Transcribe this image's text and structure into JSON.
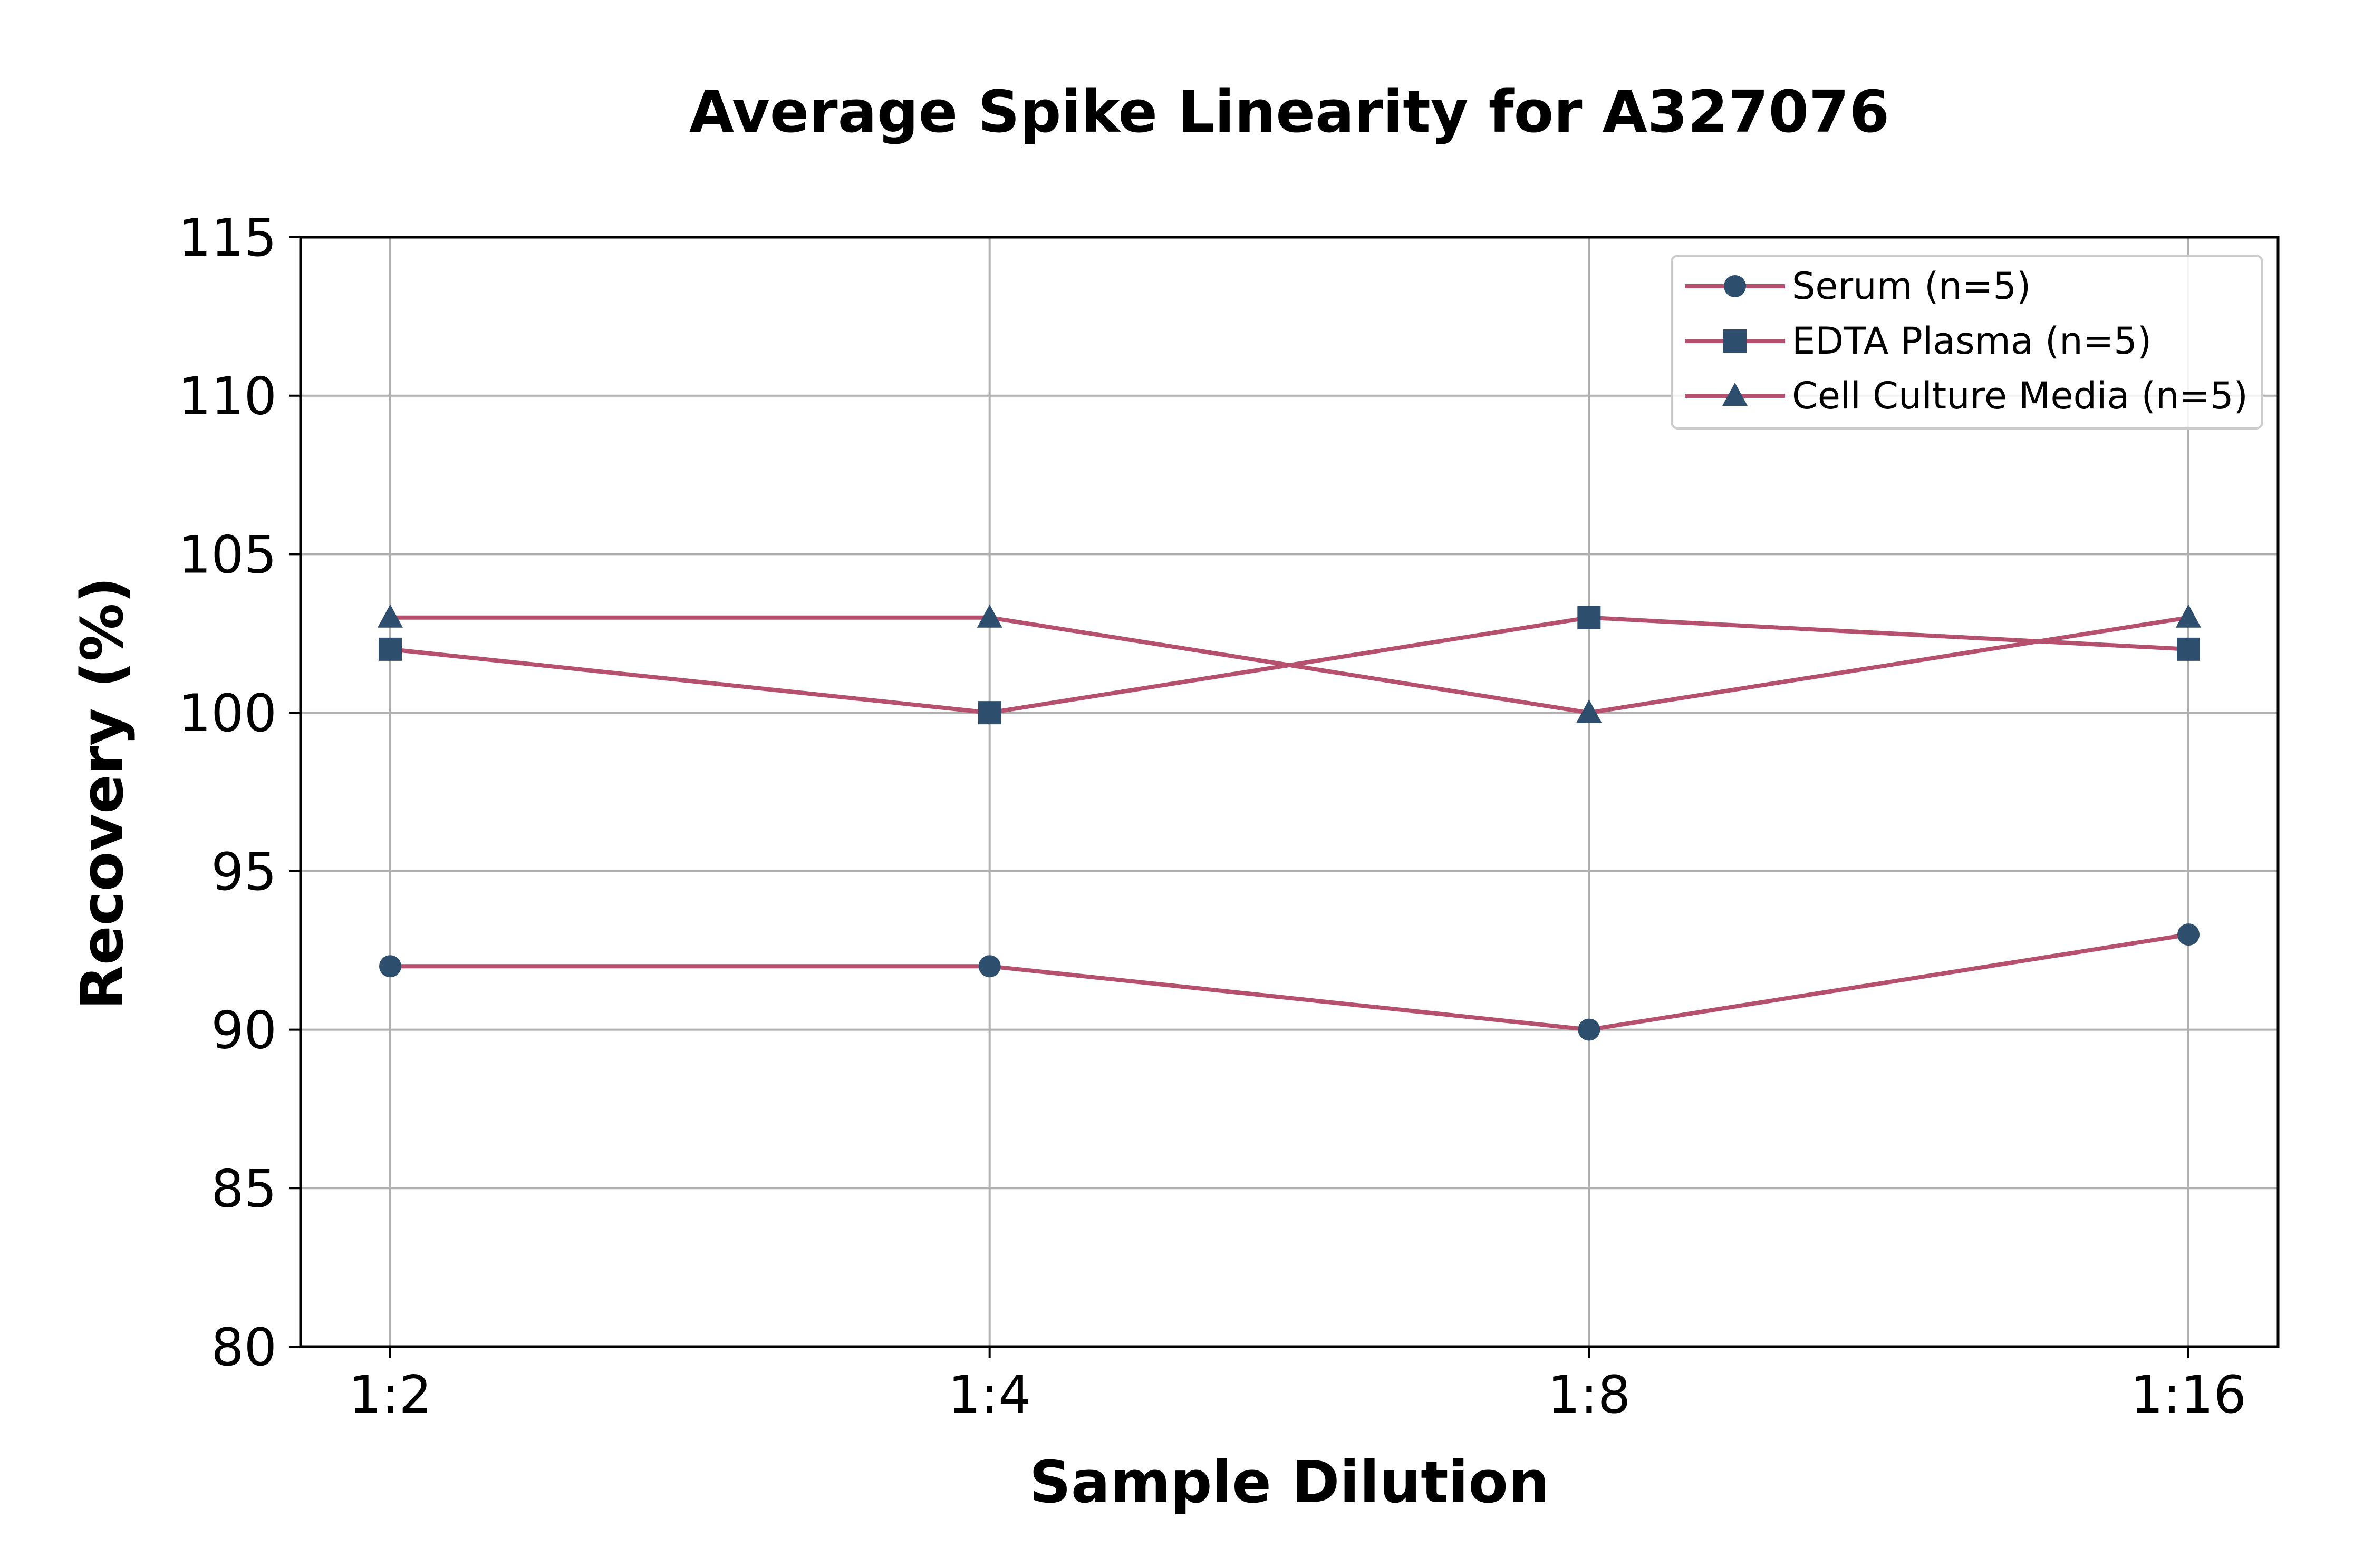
{
  "chart_data": {
    "type": "line",
    "title": "Average Spike Linearity for A327076",
    "xlabel": "Sample Dilution",
    "ylabel": "Recovery (%)",
    "categories": [
      "1:2",
      "1:4",
      "1:8",
      "1:16"
    ],
    "ylim": [
      80,
      115
    ],
    "yticks": [
      80,
      85,
      90,
      95,
      100,
      105,
      110,
      115
    ],
    "grid": true,
    "legend_position": "top-right",
    "line_color": "#b5506f",
    "marker_color": "#2e4e6e",
    "series": [
      {
        "name": "Serum (n=5)",
        "marker": "circle",
        "values": [
          92,
          92,
          90,
          93
        ]
      },
      {
        "name": "EDTA Plasma (n=5)",
        "marker": "square",
        "values": [
          102,
          100,
          103,
          102
        ]
      },
      {
        "name": "Cell Culture Media (n=5)",
        "marker": "triangle",
        "values": [
          103,
          103,
          100,
          103
        ]
      }
    ]
  }
}
